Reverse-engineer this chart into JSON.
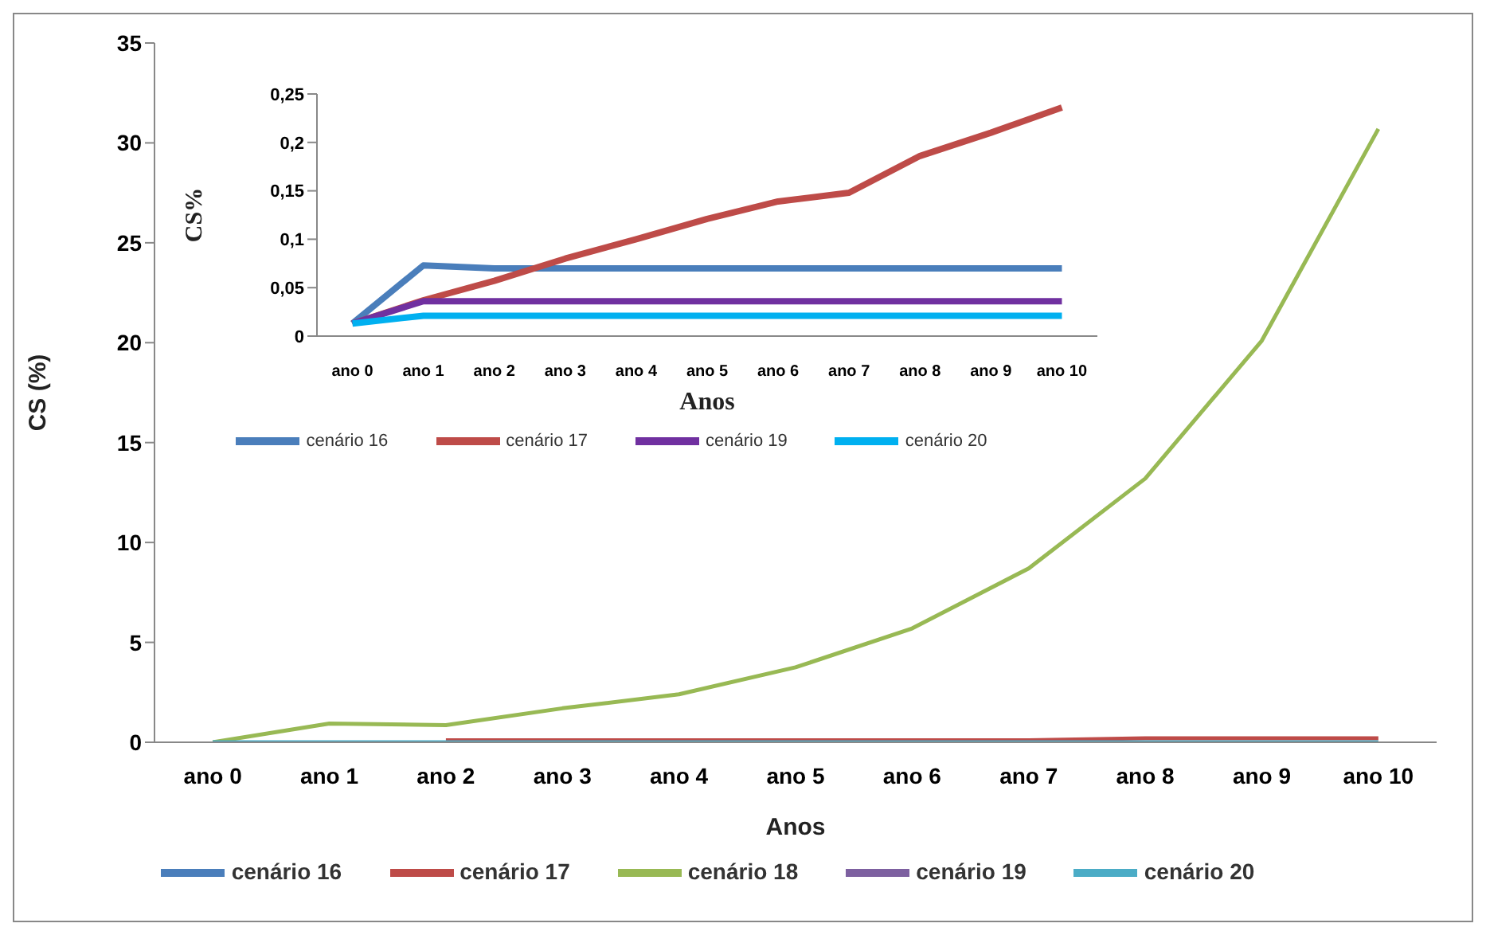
{
  "chart_data": [
    {
      "type": "line",
      "xlabel": "Anos",
      "ylabel": "CS (%)",
      "categories": [
        "ano 0",
        "ano 1",
        "ano 2",
        "ano 3",
        "ano 4",
        "ano 5",
        "ano 6",
        "ano 7",
        "ano 8",
        "ano 9",
        "ano 10"
      ],
      "ylim": [
        0,
        35
      ],
      "yticks": [
        0,
        5,
        10,
        15,
        20,
        25,
        30,
        35
      ],
      "legend": "bottom",
      "marker": "none",
      "series": [
        {
          "name": "cenário 16",
          "color": "#4a7ebb",
          "values": [
            null,
            null,
            null,
            null,
            null,
            null,
            null,
            null,
            null,
            null,
            null
          ]
        },
        {
          "name": "cenário 17",
          "color": "#be4b48",
          "values": [
            null,
            null,
            0.1,
            0.1,
            0.1,
            0.1,
            0.1,
            0.1,
            0.2,
            0.2,
            0.2
          ]
        },
        {
          "name": "cenário 18",
          "color": "#98b954",
          "values": [
            0,
            0.94,
            0.86,
            1.7,
            2.4,
            3.75,
            5.7,
            8.7,
            13.2,
            20.1,
            30.7
          ]
        },
        {
          "name": "cenário 19",
          "color": "#7d60a0",
          "values": [
            null,
            null,
            null,
            null,
            null,
            null,
            null,
            null,
            null,
            null,
            null
          ]
        },
        {
          "name": "cenário 20",
          "color": "#4bacc6",
          "values": [
            0,
            0,
            0,
            0,
            0,
            0,
            0,
            0,
            0,
            0,
            0
          ]
        }
      ]
    },
    {
      "type": "line",
      "xlabel": "Anos",
      "ylabel": "CS%",
      "categories": [
        "ano 0",
        "ano 1",
        "ano 2",
        "ano 3",
        "ano 4",
        "ano 5",
        "ano 6",
        "ano 7",
        "ano 8",
        "ano 9",
        "ano 10"
      ],
      "ylim": [
        0,
        0.25
      ],
      "yticks": [
        {
          "value": 0,
          "label": "0"
        },
        {
          "value": 0.05,
          "label": "0,05"
        },
        {
          "value": 0.1,
          "label": "0,1"
        },
        {
          "value": 0.15,
          "label": "0,15"
        },
        {
          "value": 0.2,
          "label": "0,2"
        },
        {
          "value": 0.25,
          "label": "0,25"
        }
      ],
      "legend": "bottom",
      "marker": "none",
      "series": [
        {
          "name": "cenário 16",
          "color": "#4a7ebb",
          "values": [
            0.013,
            0.073,
            0.07,
            0.07,
            0.07,
            0.07,
            0.07,
            0.07,
            0.07,
            0.07,
            0.07
          ]
        },
        {
          "name": "cenário 17",
          "color": "#be4b48",
          "values": [
            0.013,
            0.037,
            0.057,
            0.08,
            0.1,
            0.121,
            0.139,
            0.148,
            0.186,
            0.21,
            0.236
          ]
        },
        {
          "name": "cenário 19",
          "color": "#7030a0",
          "values": [
            0.013,
            0.036,
            0.036,
            0.036,
            0.036,
            0.036,
            0.036,
            0.036,
            0.036,
            0.036,
            0.036
          ]
        },
        {
          "name": "cenário 20",
          "color": "#00b0f0",
          "values": [
            0.013,
            0.021,
            0.021,
            0.021,
            0.021,
            0.021,
            0.021,
            0.021,
            0.021,
            0.021,
            0.021
          ]
        }
      ]
    }
  ]
}
